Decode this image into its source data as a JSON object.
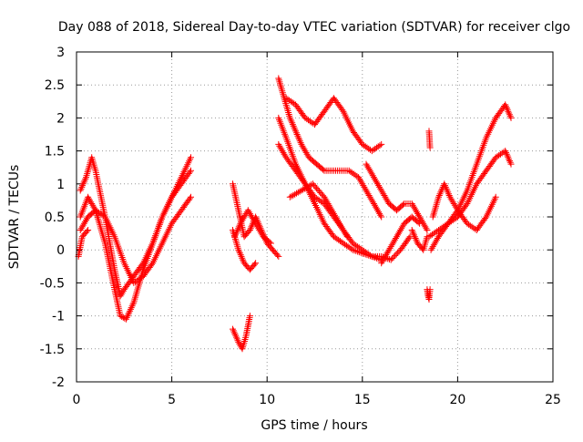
{
  "chart_data": {
    "type": "scatter",
    "title": "Day 088 of 2018, Sidereal Day-to-day VTEC variation (SDTVAR) for receiver clgo",
    "xlabel": "GPS time / hours",
    "ylabel": "SDTVAR / TECUs",
    "xlim": [
      0,
      25
    ],
    "ylim": [
      -2,
      3
    ],
    "grid": true,
    "marker": "+",
    "xticks": [
      {
        "value": 0,
        "label": "0"
      },
      {
        "value": 5,
        "label": "5"
      },
      {
        "value": 10,
        "label": "10"
      },
      {
        "value": 15,
        "label": "15"
      },
      {
        "value": 20,
        "label": "20"
      },
      {
        "value": 25,
        "label": "25"
      }
    ],
    "yticks": [
      {
        "value": -2,
        "label": "-2"
      },
      {
        "value": -1.5,
        "label": "-1.5"
      },
      {
        "value": -1,
        "label": "-1"
      },
      {
        "value": -0.5,
        "label": "-0.5"
      },
      {
        "value": 0,
        "label": "0"
      },
      {
        "value": 0.5,
        "label": "0.5"
      },
      {
        "value": 1,
        "label": "1"
      },
      {
        "value": 1.5,
        "label": "1.5"
      },
      {
        "value": 2,
        "label": "2"
      },
      {
        "value": 2.5,
        "label": "2.5"
      },
      {
        "value": 3,
        "label": "3"
      }
    ],
    "series": [
      {
        "name": "SDTVAR",
        "color": "#ff0000",
        "tracks": [
          {
            "x": [
              0.2,
              0.5,
              0.8,
              1.0,
              1.5,
              2.0,
              2.3,
              2.5,
              3.0,
              3.5,
              4.0,
              4.5,
              5.0,
              5.5,
              6.0
            ],
            "y": [
              0.9,
              1.1,
              1.4,
              1.2,
              0.5,
              -0.3,
              -0.7,
              -0.6,
              -0.4,
              -0.2,
              0.1,
              0.5,
              0.8,
              1.1,
              1.4
            ]
          },
          {
            "x": [
              0.2,
              0.6,
              1.0,
              1.5,
              2.0,
              2.3,
              2.6,
              3.0,
              3.5,
              4.0,
              4.5,
              5.0,
              5.5,
              6.0
            ],
            "y": [
              0.5,
              0.8,
              0.6,
              0.1,
              -0.6,
              -1.0,
              -1.05,
              -0.8,
              -0.3,
              0.1,
              0.5,
              0.8,
              1.0,
              1.2
            ]
          },
          {
            "x": [
              0.2,
              0.6,
              1.0,
              1.5,
              2.0,
              2.5,
              3.0,
              3.5,
              4.0,
              4.5,
              5.0,
              5.5,
              6.0
            ],
            "y": [
              0.3,
              0.5,
              0.6,
              0.5,
              0.2,
              -0.2,
              -0.5,
              -0.4,
              -0.2,
              0.1,
              0.4,
              0.6,
              0.8
            ]
          },
          {
            "x": [
              0.1,
              0.3,
              0.6
            ],
            "y": [
              -0.1,
              0.2,
              0.3
            ]
          },
          {
            "x": [
              8.2,
              8.5,
              8.8,
              9.1,
              9.4,
              9.7,
              10.0,
              10.3,
              10.6
            ],
            "y": [
              1.0,
              0.6,
              0.2,
              0.3,
              0.5,
              0.3,
              0.1,
              0.0,
              -0.1
            ]
          },
          {
            "x": [
              8.2,
              8.5,
              8.8,
              9.1,
              9.4
            ],
            "y": [
              0.3,
              0.0,
              -0.2,
              -0.3,
              -0.2
            ]
          },
          {
            "x": [
              8.3,
              8.6,
              9.0,
              9.4,
              9.8,
              10.2
            ],
            "y": [
              0.2,
              0.4,
              0.6,
              0.4,
              0.2,
              0.1
            ]
          },
          {
            "x": [
              8.2,
              8.5,
              8.7,
              8.9,
              9.1
            ],
            "y": [
              -1.2,
              -1.4,
              -1.5,
              -1.3,
              -1.0
            ]
          },
          {
            "x": [
              10.6,
              10.9,
              11.2,
              11.5,
              11.8,
              12.2,
              12.6,
              13.0,
              13.4,
              13.8,
              14.3,
              14.8,
              15.2,
              15.6,
              16.0
            ],
            "y": [
              2.6,
              2.3,
              2.0,
              1.8,
              1.6,
              1.4,
              1.3,
              1.2,
              1.2,
              1.2,
              1.2,
              1.1,
              0.9,
              0.7,
              0.5
            ]
          },
          {
            "x": [
              10.6,
              11.0,
              11.5,
              12.0,
              12.5,
              13.0,
              13.5,
              14.0,
              14.5,
              15.0,
              15.5,
              16.0,
              16.5,
              17.0,
              17.5
            ],
            "y": [
              2.0,
              1.7,
              1.3,
              1.0,
              0.7,
              0.4,
              0.2,
              0.1,
              0.0,
              -0.05,
              -0.1,
              -0.1,
              -0.15,
              0.0,
              0.2
            ]
          },
          {
            "x": [
              10.6,
              11.0,
              11.5,
              12.0,
              12.5,
              13.0,
              13.5,
              14.0,
              14.5,
              15.0,
              15.5,
              16.0
            ],
            "y": [
              1.6,
              1.4,
              1.2,
              1.0,
              0.8,
              0.7,
              0.5,
              0.3,
              0.1,
              0.0,
              -0.1,
              -0.15
            ]
          },
          {
            "x": [
              11.0,
              11.5,
              12.0,
              12.5,
              13.0,
              13.5,
              14.0,
              14.5,
              15.0,
              15.5,
              16.0
            ],
            "y": [
              2.3,
              2.2,
              2.0,
              1.9,
              2.1,
              2.3,
              2.1,
              1.8,
              1.6,
              1.5,
              1.6
            ]
          },
          {
            "x": [
              11.2,
              11.8,
              12.4,
              13.0,
              13.6,
              14.2
            ],
            "y": [
              0.8,
              0.9,
              1.0,
              0.8,
              0.5,
              0.2
            ]
          },
          {
            "x": [
              15.2,
              15.6,
              16.0,
              16.4,
              16.8,
              17.2,
              17.6,
              18.0,
              18.4
            ],
            "y": [
              1.3,
              1.1,
              0.9,
              0.7,
              0.6,
              0.7,
              0.7,
              0.5,
              0.3
            ]
          },
          {
            "x": [
              16.0,
              16.4,
              16.8,
              17.2,
              17.6,
              18.0
            ],
            "y": [
              -0.2,
              0.0,
              0.2,
              0.4,
              0.5,
              0.4
            ]
          },
          {
            "x": [
              17.6,
              17.9,
              18.2,
              18.4
            ],
            "y": [
              0.3,
              0.1,
              0.0,
              0.2
            ]
          },
          {
            "x": [
              18.4,
              18.45,
              18.5,
              18.55
            ],
            "y": [
              -0.6,
              -0.7,
              -0.75,
              -0.6
            ]
          },
          {
            "x": [
              18.5,
              18.55
            ],
            "y": [
              1.8,
              1.55
            ]
          },
          {
            "x": [
              18.5,
              19.0,
              19.5,
              20.0,
              20.5,
              21.0,
              21.5,
              22.0,
              22.5,
              22.8
            ],
            "y": [
              0.2,
              0.3,
              0.4,
              0.6,
              0.9,
              1.3,
              1.7,
              2.0,
              2.2,
              2.0
            ]
          },
          {
            "x": [
              18.6,
              19.0,
              19.5,
              20.0,
              20.5,
              21.0,
              21.5,
              22.0,
              22.5,
              22.8
            ],
            "y": [
              0.0,
              0.2,
              0.4,
              0.5,
              0.7,
              1.0,
              1.2,
              1.4,
              1.5,
              1.3
            ]
          },
          {
            "x": [
              18.7,
              19.0,
              19.3,
              19.6,
              20.0,
              20.5,
              21.0,
              21.5,
              22.0
            ],
            "y": [
              0.5,
              0.8,
              1.0,
              0.8,
              0.6,
              0.4,
              0.3,
              0.5,
              0.8
            ]
          }
        ]
      }
    ]
  }
}
